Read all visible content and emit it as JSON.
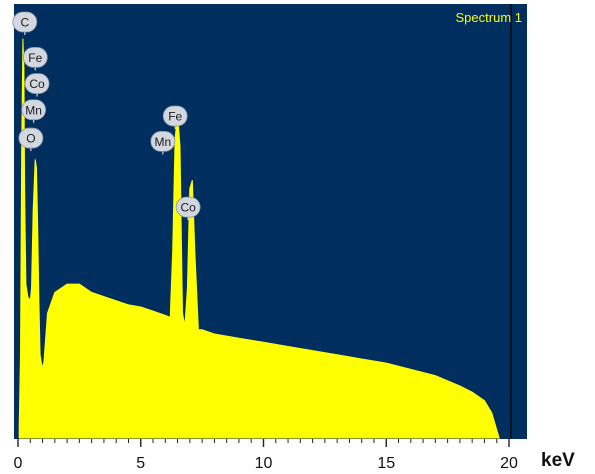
{
  "chart_data": {
    "type": "area",
    "title": "",
    "spectrum_label": "Spectrum 1",
    "xlabel": "keV",
    "ylabel": "",
    "xlim": [
      0,
      20.2
    ],
    "ylim": [
      0,
      100
    ],
    "x_ticks": [
      0,
      5,
      10,
      15,
      20
    ],
    "x_minor_step": 0.5,
    "grid": false,
    "legend": "none",
    "colors": {
      "plot_background": "#002f5f",
      "fill": "#ffff00",
      "spectrum_label": "#ffff00",
      "peak_label_bg": "#d3d8e0",
      "marker_line": "#0a0a0a"
    },
    "series": [
      {
        "x": [
          0.05,
          0.1,
          0.15,
          0.2,
          0.24,
          0.27,
          0.32,
          0.4,
          0.5,
          0.55,
          0.62,
          0.7,
          0.75,
          0.8,
          0.85,
          0.9,
          0.98,
          1.05,
          1.2,
          1.5,
          2.0,
          2.5,
          3.0,
          3.5,
          4.0,
          4.5,
          5.0,
          5.5,
          6.0,
          6.2,
          6.3,
          6.4,
          6.5,
          6.6,
          6.7,
          6.8,
          6.9,
          7.0,
          7.1,
          7.2,
          7.35,
          7.5,
          8.0,
          9.0,
          10.0,
          11.0,
          12.0,
          13.0,
          14.0,
          15.0,
          16.0,
          17.0,
          18.0,
          18.5,
          19.0,
          19.3,
          19.5,
          19.6
        ],
        "y": [
          3,
          20,
          70,
          96,
          89,
          60,
          37,
          34,
          33,
          36,
          55,
          67,
          65,
          52,
          33,
          20,
          17,
          18,
          30,
          35,
          37,
          37,
          35,
          34,
          33,
          32,
          31.5,
          30.5,
          29.5,
          29,
          45,
          72,
          78,
          70,
          30,
          27,
          36,
          60,
          62,
          45,
          26,
          26,
          25,
          24,
          23,
          22,
          21,
          20,
          19,
          18,
          16.5,
          15,
          12.5,
          11,
          9,
          6,
          2,
          0
        ]
      }
    ],
    "peak_labels": [
      {
        "label": "C",
        "x": 0.277,
        "y": 100
      },
      {
        "label": "Fe",
        "x": 0.705,
        "y": 91.5
      },
      {
        "label": "Co",
        "x": 0.776,
        "y": 85.2
      },
      {
        "label": "Mn",
        "x": 0.637,
        "y": 78.9
      },
      {
        "label": "O",
        "x": 0.525,
        "y": 72.1
      },
      {
        "label": "Fe",
        "x": 6.404,
        "y": 77.4
      },
      {
        "label": "Mn",
        "x": 5.899,
        "y": 71.3
      },
      {
        "label": "Co",
        "x": 6.93,
        "y": 55.5
      }
    ]
  }
}
